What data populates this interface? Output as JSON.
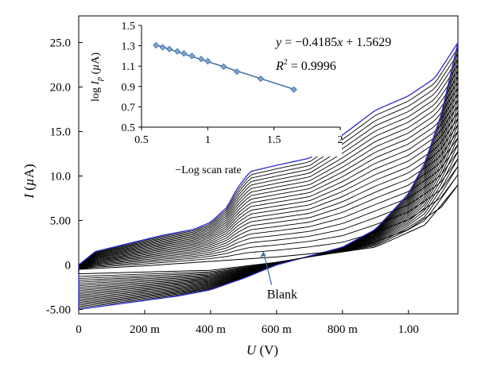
{
  "chart_data": [
    {
      "type": "line",
      "title": "",
      "xlabel": "U (V)",
      "ylabel": "I (µA)",
      "xlim": [
        0,
        1.15
      ],
      "ylim": [
        -5.5,
        28
      ],
      "x_ticks": [
        {
          "v": 0,
          "label": "0"
        },
        {
          "v": 0.2,
          "label": "200 m"
        },
        {
          "v": 0.4,
          "label": "400 m"
        },
        {
          "v": 0.6,
          "label": "600 m"
        },
        {
          "v": 0.8,
          "label": "800 m"
        },
        {
          "v": 1.0,
          "label": "1.00"
        }
      ],
      "y_ticks": [
        {
          "v": -5,
          "label": "-5.00"
        },
        {
          "v": 0,
          "label": "0"
        },
        {
          "v": 5,
          "label": "5.00"
        },
        {
          "v": 10,
          "label": "10.0"
        },
        {
          "v": 15,
          "label": "15.0"
        },
        {
          "v": 20,
          "label": "20.0"
        },
        {
          "v": 25,
          "label": "25.0"
        }
      ],
      "series_description": "Family of cyclic voltammograms at increasing scan rates, plus a blank",
      "curve_count": 22,
      "highest_curve_color": "#2b2bd0",
      "curve_color": "#000000",
      "scan_rate_scale": {
        "min": 0.02,
        "max": 1.0
      },
      "outermost_curve": {
        "forward": [
          [
            0,
            0
          ],
          [
            0.05,
            1.5
          ],
          [
            0.15,
            2.4
          ],
          [
            0.25,
            3.3
          ],
          [
            0.35,
            4.0
          ],
          [
            0.4,
            4.8
          ],
          [
            0.45,
            6.5
          ],
          [
            0.48,
            8.6
          ],
          [
            0.52,
            10.5
          ],
          [
            0.6,
            11.2
          ],
          [
            0.7,
            12.0
          ],
          [
            0.8,
            14.6
          ],
          [
            0.9,
            17.4
          ],
          [
            1.0,
            19.0
          ],
          [
            1.08,
            21.0
          ],
          [
            1.15,
            25.0
          ]
        ],
        "reverse": [
          [
            1.15,
            25.0
          ],
          [
            1.1,
            17.0
          ],
          [
            1.05,
            11.5
          ],
          [
            1.0,
            8.0
          ],
          [
            0.9,
            4.0
          ],
          [
            0.8,
            2.0
          ],
          [
            0.7,
            1.0
          ],
          [
            0.6,
            0.0
          ],
          [
            0.5,
            -1.5
          ],
          [
            0.4,
            -2.8
          ],
          [
            0.3,
            -3.5
          ],
          [
            0.2,
            -4.0
          ],
          [
            0.1,
            -4.5
          ],
          [
            0,
            -5.0
          ]
        ]
      },
      "blank_curve": {
        "forward": [
          [
            0,
            -0.5
          ],
          [
            0.2,
            -0.1
          ],
          [
            0.4,
            0.4
          ],
          [
            0.6,
            0.9
          ],
          [
            0.8,
            1.6
          ],
          [
            0.9,
            2.6
          ],
          [
            1.0,
            4.0
          ],
          [
            1.1,
            6.5
          ],
          [
            1.15,
            9.0
          ]
        ],
        "reverse": [
          [
            1.15,
            9.0
          ],
          [
            1.05,
            4.5
          ],
          [
            0.9,
            2.0
          ],
          [
            0.75,
            1.2
          ],
          [
            0.6,
            0.3
          ],
          [
            0.4,
            -0.6
          ],
          [
            0.2,
            -0.8
          ],
          [
            0,
            -1.0
          ]
        ]
      },
      "annotation": {
        "text": "Blank",
        "x": 0.56,
        "y": 1.5,
        "text_x": 0.59,
        "text_y": -3.5
      }
    },
    {
      "type": "scatter",
      "title": "",
      "xlabel": "−Log scan rate",
      "ylabel": "log I_p (µA)",
      "xlim": [
        0.5,
        2
      ],
      "ylim": [
        0.5,
        1.5
      ],
      "x_ticks": [
        {
          "v": 0.5,
          "label": "0.5"
        },
        {
          "v": 1,
          "label": "1"
        },
        {
          "v": 1.5,
          "label": "1.5"
        },
        {
          "v": 2,
          "label": "2"
        }
      ],
      "y_ticks": [
        {
          "v": 0.5,
          "label": "0.5"
        },
        {
          "v": 0.7,
          "label": "0.7"
        },
        {
          "v": 0.9,
          "label": "0.9"
        },
        {
          "v": 1.1,
          "label": "1.1"
        },
        {
          "v": 1.3,
          "label": "1.3"
        },
        {
          "v": 1.5,
          "label": "1.5"
        }
      ],
      "points": [
        {
          "x": 0.61,
          "y": 1.305
        },
        {
          "x": 0.66,
          "y": 1.285
        },
        {
          "x": 0.71,
          "y": 1.268
        },
        {
          "x": 0.77,
          "y": 1.245
        },
        {
          "x": 0.82,
          "y": 1.225
        },
        {
          "x": 0.88,
          "y": 1.2
        },
        {
          "x": 0.95,
          "y": 1.17
        },
        {
          "x": 1.0,
          "y": 1.148
        },
        {
          "x": 1.12,
          "y": 1.095
        },
        {
          "x": 1.22,
          "y": 1.045
        },
        {
          "x": 1.4,
          "y": 0.976
        },
        {
          "x": 1.65,
          "y": 0.869
        }
      ],
      "fit_line": {
        "slope": -0.4185,
        "intercept": 1.5629,
        "x_range": [
          0.61,
          1.65
        ]
      },
      "marker_color": "#7fa4cf",
      "line_color": "#3d6ea5",
      "equation": "y = −0.4185x + 1.5629",
      "r_squared": "R² = 0.9996"
    }
  ]
}
